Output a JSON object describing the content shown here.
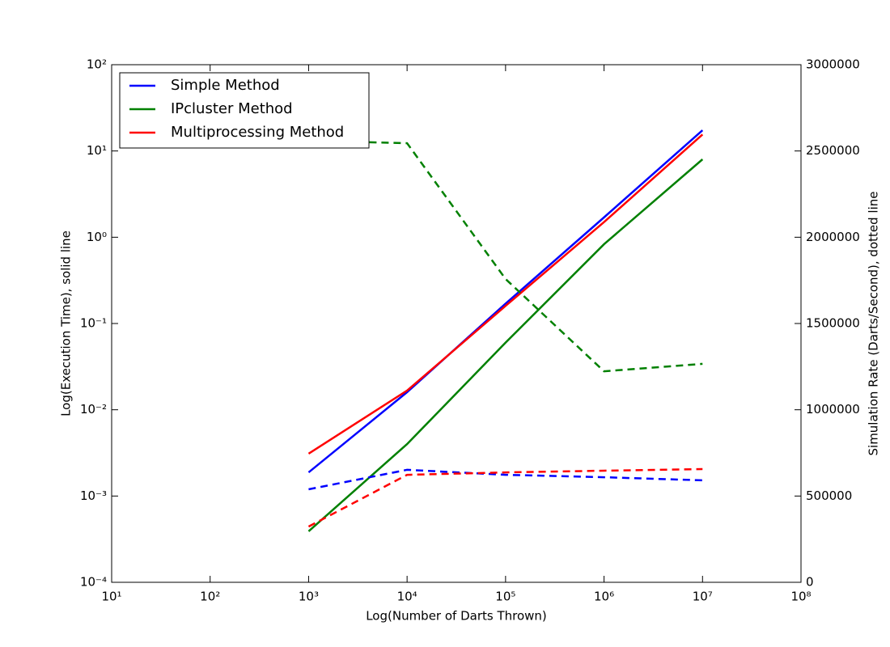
{
  "chart_data": {
    "type": "line",
    "x_label": "Log(Number of Darts Thrown)",
    "y_label": "Log(Execution Time), solid line",
    "y2_label": "Simulation Rate (Darts/Second), dotted line",
    "x": [
      1000,
      10000,
      100000,
      1000000,
      10000000
    ],
    "xscale": "log",
    "yscale": "log",
    "xlim": [
      10,
      100000000
    ],
    "ylim": [
      0.0001,
      100
    ],
    "y2lim": [
      0,
      3000000
    ],
    "xticks": [
      {
        "value": 10,
        "label": "10¹"
      },
      {
        "value": 100,
        "label": "10²"
      },
      {
        "value": 1000,
        "label": "10³"
      },
      {
        "value": 10000,
        "label": "10⁴"
      },
      {
        "value": 100000,
        "label": "10⁵"
      },
      {
        "value": 1000000,
        "label": "10⁶"
      },
      {
        "value": 10000000,
        "label": "10⁷"
      },
      {
        "value": 100000000,
        "label": "10⁸"
      }
    ],
    "yticks": [
      {
        "value": 0.0001,
        "label": "10⁻⁴"
      },
      {
        "value": 0.001,
        "label": "10⁻³"
      },
      {
        "value": 0.01,
        "label": "10⁻²"
      },
      {
        "value": 0.1,
        "label": "10⁻¹"
      },
      {
        "value": 1,
        "label": "10⁰"
      },
      {
        "value": 10,
        "label": "10¹"
      },
      {
        "value": 100,
        "label": "10²"
      }
    ],
    "y2ticks": [
      0,
      500000,
      1000000,
      1500000,
      2000000,
      2500000,
      3000000
    ],
    "legend": "upper left",
    "series": [
      {
        "name": "Simple Method",
        "color": "#0000ff",
        "values": [
          0.00188,
          0.016,
          0.17,
          1.7,
          17.4
        ]
      },
      {
        "name": "IPcluster Method",
        "color": "#008000",
        "values": [
          0.00039,
          0.004,
          0.06,
          0.83,
          8
        ]
      },
      {
        "name": "Multiprocessing Method",
        "color": "#ff0000",
        "values": [
          0.0031,
          0.0167,
          0.16,
          1.5,
          15.5
        ]
      },
      {
        "color": "#0000ff",
        "axis": "y2",
        "dashed": true,
        "values": [
          539000,
          652000,
          623000,
          609000,
          591000
        ]
      },
      {
        "color": "#008000",
        "axis": "y2",
        "dashed": true,
        "values": [
          2559000,
          2545000,
          1758000,
          1223000,
          1266000
        ]
      },
      {
        "color": "#ff0000",
        "axis": "y2",
        "dashed": true,
        "values": [
          323000,
          623000,
          637000,
          647000,
          656000
        ]
      }
    ]
  }
}
